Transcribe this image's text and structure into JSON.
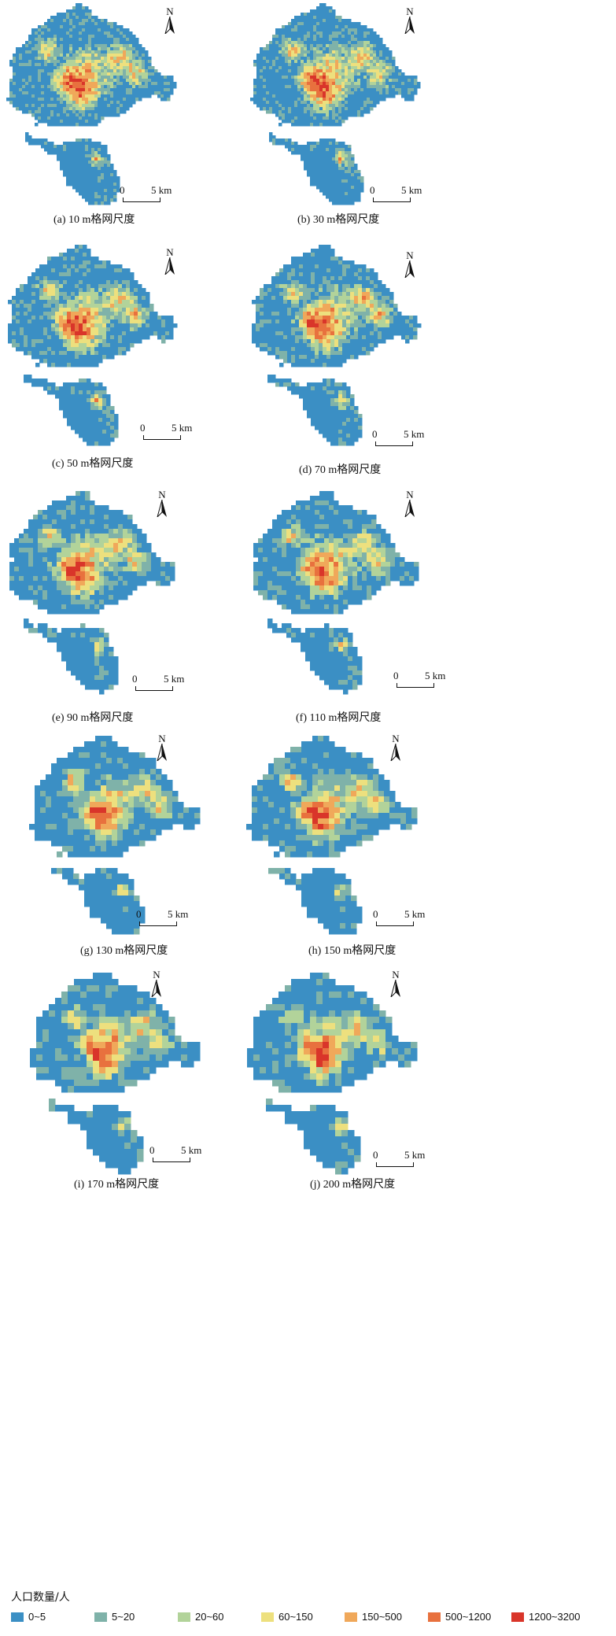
{
  "panels": [
    {
      "id": "a",
      "caption": "(a) 10 m格网尺度"
    },
    {
      "id": "b",
      "caption": "(b) 30 m格网尺度"
    },
    {
      "id": "c",
      "caption": "(c) 50 m格网尺度"
    },
    {
      "id": "d",
      "caption": "(d) 70 m格网尺度"
    },
    {
      "id": "e",
      "caption": "(e) 90 m格网尺度"
    },
    {
      "id": "f",
      "caption": "(f) 110 m格网尺度"
    },
    {
      "id": "g",
      "caption": "(g) 130 m格网尺度"
    },
    {
      "id": "h",
      "caption": "(h) 150 m格网尺度"
    },
    {
      "id": "i",
      "caption": "(i) 170 m格网尺度"
    },
    {
      "id": "j",
      "caption": "(j) 200 m格网尺度"
    }
  ],
  "north_label": "N",
  "scale_bar": {
    "start": "0",
    "end": "5 km"
  },
  "legend": {
    "title": "人口数量/人",
    "classes": [
      {
        "label": "0~5",
        "color": "#3b8fc4"
      },
      {
        "label": "5~20",
        "color": "#7fb2a9"
      },
      {
        "label": "20~60",
        "color": "#b2d39a"
      },
      {
        "label": "60~150",
        "color": "#ede07e"
      },
      {
        "label": "150~500",
        "color": "#f0a85a"
      },
      {
        "label": "500~1200",
        "color": "#e8713e"
      },
      {
        "label": "1200~3200",
        "color": "#d9352a"
      }
    ]
  }
}
